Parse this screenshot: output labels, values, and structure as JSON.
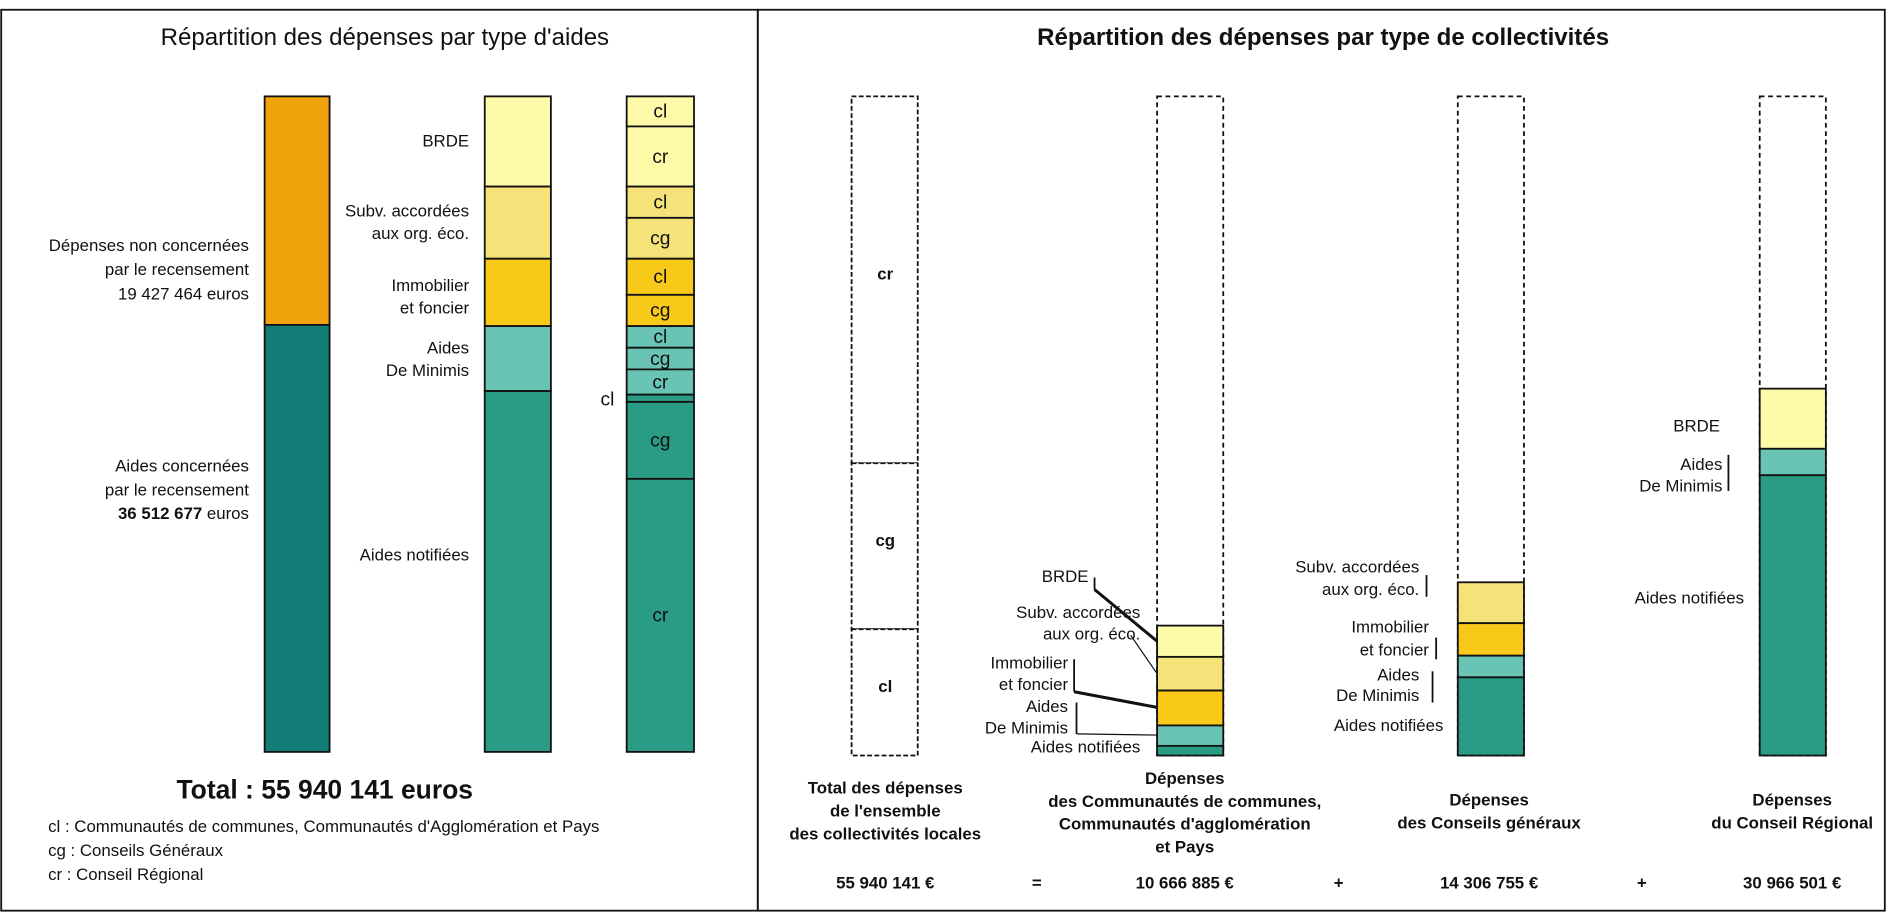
{
  "left": {
    "title": "Répartition des dépenses par type d'aides",
    "non_concerned": {
      "lines": [
        "Dépenses non concernées",
        "par le recensement"
      ],
      "amount": "19 427 464 euros"
    },
    "concerned": {
      "lines": [
        "Aides concernées",
        "par le recensement"
      ],
      "amount": "36 512 677",
      "unit": "euros"
    },
    "types": [
      [
        "BRDE"
      ],
      [
        "Subv. accordées",
        "aux org. éco."
      ],
      [
        "Immobilier",
        "et foncier"
      ],
      [
        "Aides",
        "De Minimis"
      ],
      [
        "Aides notifiées"
      ]
    ],
    "codes": {
      "cl": "cl",
      "cg": "cg",
      "cr": "cr"
    },
    "total": "Total : 55 940 141 euros",
    "legend": [
      "cl : Communautés de communes, Communautés d'Agglomération et Pays",
      "cg : Conseils Généraux",
      "cr : Conseil Régional"
    ]
  },
  "right": {
    "title": "Répartition des dépenses par type de collectivités",
    "columns": [
      {
        "lines": [
          "Total des dépenses",
          "de l'ensemble",
          "des collectivités locales"
        ],
        "amount": "55 940 141 €"
      },
      {
        "lines": [
          "Dépenses",
          "des Communautés de communes,",
          "Communautés d'agglomération",
          "et Pays"
        ],
        "amount": "10 666 885 €"
      },
      {
        "lines": [
          "Dépenses",
          "des Conseils généraux"
        ],
        "amount": "14 306 755 €"
      },
      {
        "lines": [
          "Dépenses",
          "du Conseil Régional"
        ],
        "amount": "30 966 501 €"
      }
    ],
    "operators": [
      "=",
      "+",
      "+"
    ]
  }
}
